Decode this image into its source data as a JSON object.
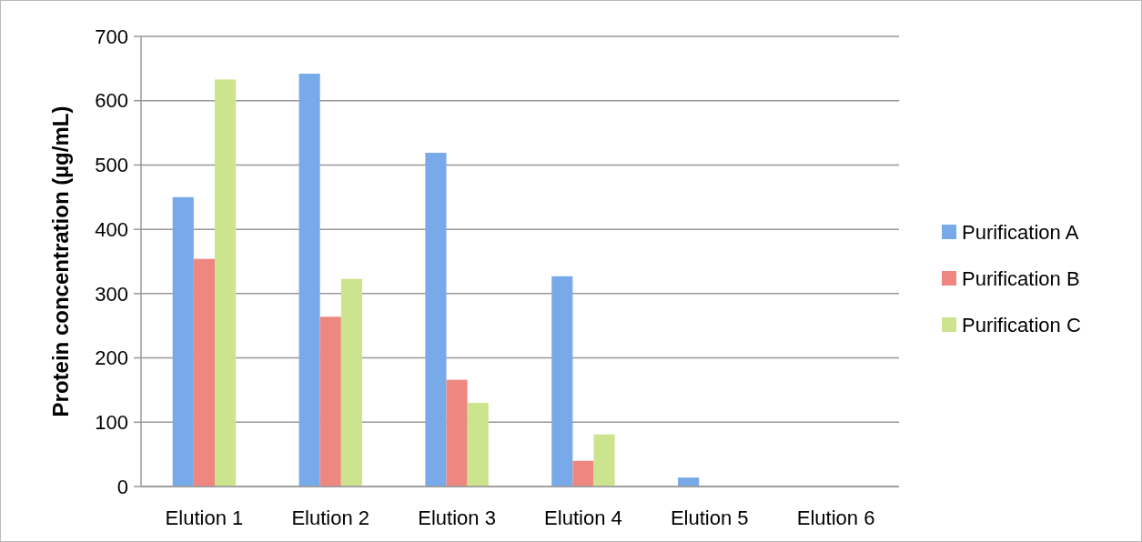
{
  "chart_data": {
    "type": "bar",
    "ylabel": "Protein concentration (µg/mL)",
    "categories": [
      "Elution 1",
      "Elution 2",
      "Elution 3",
      "Elution 4",
      "Elution 5",
      "Elution 6"
    ],
    "series": [
      {
        "name": "Purification A",
        "color": "#78aaea",
        "values": [
          450,
          642,
          519,
          327,
          14,
          null
        ]
      },
      {
        "name": "Purification B",
        "color": "#ee8780",
        "values": [
          354,
          264,
          166,
          40,
          null,
          null
        ]
      },
      {
        "name": "Purification C",
        "color": "#cce48e",
        "values": [
          633,
          323,
          130,
          81,
          null,
          null
        ]
      }
    ],
    "ylim": [
      0,
      700
    ],
    "yticks": [
      0,
      100,
      200,
      300,
      400,
      500,
      600,
      700
    ],
    "grid": "y",
    "legend": "right"
  }
}
